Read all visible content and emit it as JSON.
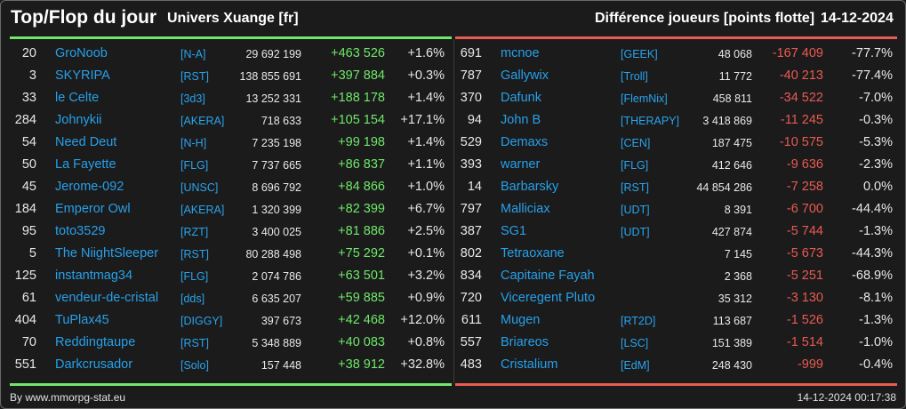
{
  "header": {
    "title": "Top/Flop du jour",
    "universe": "Univers Xuange [fr]",
    "metric": "Différence joueurs [points flotte]",
    "date": "14-12-2024"
  },
  "colors": {
    "positive": "#6fe86a",
    "negative": "#e95a52",
    "name": "#27a0ea",
    "background": "#1b1b1b"
  },
  "top": [
    {
      "rank": "20",
      "name": "GroNoob",
      "alliance": "[N-A]",
      "points": "29 692 199",
      "diff": "+463 526",
      "pct": "+1.6%"
    },
    {
      "rank": "3",
      "name": "SKYRIPA",
      "alliance": "[RST]",
      "points": "138 855 691",
      "diff": "+397 884",
      "pct": "+0.3%"
    },
    {
      "rank": "33",
      "name": "le Celte",
      "alliance": "[3d3]",
      "points": "13 252 331",
      "diff": "+188 178",
      "pct": "+1.4%"
    },
    {
      "rank": "284",
      "name": "Johnykii",
      "alliance": "[AKERA]",
      "points": "718 633",
      "diff": "+105 154",
      "pct": "+17.1%"
    },
    {
      "rank": "54",
      "name": "Need Deut",
      "alliance": "[N-H]",
      "points": "7 235 198",
      "diff": "+99 198",
      "pct": "+1.4%"
    },
    {
      "rank": "50",
      "name": "La Fayette",
      "alliance": "[FLG]",
      "points": "7 737 665",
      "diff": "+86 837",
      "pct": "+1.1%"
    },
    {
      "rank": "45",
      "name": "Jerome-092",
      "alliance": "[UNSC]",
      "points": "8 696 792",
      "diff": "+84 866",
      "pct": "+1.0%"
    },
    {
      "rank": "184",
      "name": "Emperor Owl",
      "alliance": "[AKERA]",
      "points": "1 320 399",
      "diff": "+82 399",
      "pct": "+6.7%"
    },
    {
      "rank": "95",
      "name": "toto3529",
      "alliance": "[RZT]",
      "points": "3 400 025",
      "diff": "+81 886",
      "pct": "+2.5%"
    },
    {
      "rank": "5",
      "name": "The NiightSleeper",
      "alliance": "[RST]",
      "points": "80 288 498",
      "diff": "+75 292",
      "pct": "+0.1%"
    },
    {
      "rank": "125",
      "name": "instantmag34",
      "alliance": "[FLG]",
      "points": "2 074 786",
      "diff": "+63 501",
      "pct": "+3.2%"
    },
    {
      "rank": "61",
      "name": "vendeur-de-cristal",
      "alliance": "[dds]",
      "points": "6 635 207",
      "diff": "+59 885",
      "pct": "+0.9%"
    },
    {
      "rank": "404",
      "name": "TuPlax45",
      "alliance": "[DIGGY]",
      "points": "397 673",
      "diff": "+42 468",
      "pct": "+12.0%"
    },
    {
      "rank": "70",
      "name": "Reddingtaupe",
      "alliance": "[RST]",
      "points": "5 348 889",
      "diff": "+40 083",
      "pct": "+0.8%"
    },
    {
      "rank": "551",
      "name": "Darkcrusador",
      "alliance": "[Solo]",
      "points": "157 448",
      "diff": "+38 912",
      "pct": "+32.8%"
    }
  ],
  "flop": [
    {
      "rank": "691",
      "name": "mcnoe",
      "alliance": "[GEEK]",
      "points": "48 068",
      "diff": "-167 409",
      "pct": "-77.7%"
    },
    {
      "rank": "787",
      "name": "Gallywix",
      "alliance": "[Troll]",
      "points": "11 772",
      "diff": "-40 213",
      "pct": "-77.4%"
    },
    {
      "rank": "370",
      "name": "Dafunk",
      "alliance": "[FlemNix]",
      "points": "458 811",
      "diff": "-34 522",
      "pct": "-7.0%"
    },
    {
      "rank": "94",
      "name": "John B",
      "alliance": "[THERAPY]",
      "points": "3 418 869",
      "diff": "-11 245",
      "pct": "-0.3%"
    },
    {
      "rank": "529",
      "name": "Demaxs",
      "alliance": "[CEN]",
      "points": "187 475",
      "diff": "-10 575",
      "pct": "-5.3%"
    },
    {
      "rank": "393",
      "name": "warner",
      "alliance": "[FLG]",
      "points": "412 646",
      "diff": "-9 636",
      "pct": "-2.3%"
    },
    {
      "rank": "14",
      "name": "Barbarsky",
      "alliance": "[RST]",
      "points": "44 854 286",
      "diff": "-7 258",
      "pct": "0.0%"
    },
    {
      "rank": "797",
      "name": "Malliciax",
      "alliance": "[UDT]",
      "points": "8 391",
      "diff": "-6 700",
      "pct": "-44.4%"
    },
    {
      "rank": "387",
      "name": "SG1",
      "alliance": "[UDT]",
      "points": "427 874",
      "diff": "-5 744",
      "pct": "-1.3%"
    },
    {
      "rank": "802",
      "name": "Tetraoxane",
      "alliance": "",
      "points": "7 145",
      "diff": "-5 673",
      "pct": "-44.3%"
    },
    {
      "rank": "834",
      "name": "Capitaine Fayah",
      "alliance": "",
      "points": "2 368",
      "diff": "-5 251",
      "pct": "-68.9%"
    },
    {
      "rank": "720",
      "name": "Viceregent Pluto",
      "alliance": "",
      "points": "35 312",
      "diff": "-3 130",
      "pct": "-8.1%"
    },
    {
      "rank": "611",
      "name": "Mugen",
      "alliance": "[RT2D]",
      "points": "113 687",
      "diff": "-1 526",
      "pct": "-1.3%"
    },
    {
      "rank": "557",
      "name": "Briareos",
      "alliance": "[LSC]",
      "points": "151 389",
      "diff": "-1 514",
      "pct": "-1.0%"
    },
    {
      "rank": "483",
      "name": "Cristalium",
      "alliance": "[EdM]",
      "points": "248 430",
      "diff": "-999",
      "pct": "-0.4%"
    }
  ],
  "footer": {
    "credit": "By www.mmorpg-stat.eu",
    "timestamp": "14-12-2024 00:17:38"
  }
}
